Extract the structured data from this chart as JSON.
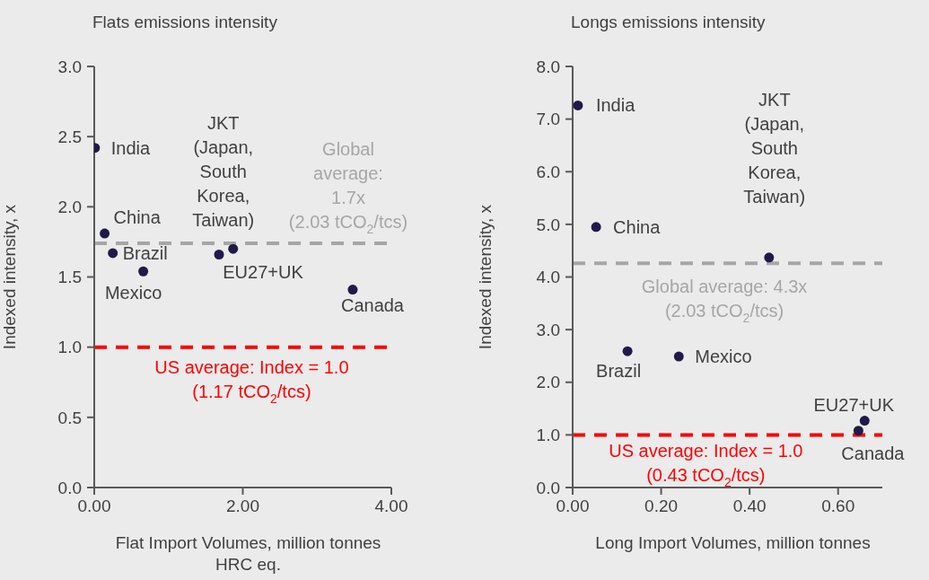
{
  "chart_data": [
    {
      "type": "scatter",
      "title": "Flats emissions intensity",
      "xlabel": "Flat Import Volumes, million tonnes HRC eq.",
      "ylabel": "Indexed intensity, x",
      "marker": "circle",
      "xlim": [
        0,
        4
      ],
      "xticks": [
        {
          "value": 0,
          "label": "0.00"
        },
        {
          "value": 2,
          "label": "2.00"
        },
        {
          "value": 4,
          "label": "4.00"
        }
      ],
      "ylim": [
        0,
        3
      ],
      "yticks": [
        {
          "value": 0,
          "label": "0.0"
        },
        {
          "value": 0.5,
          "label": "0.5"
        },
        {
          "value": 1,
          "label": "1.0"
        },
        {
          "value": 1.5,
          "label": "1.5"
        },
        {
          "value": 2,
          "label": "2.0"
        },
        {
          "value": 2.5,
          "label": "2.5"
        },
        {
          "value": 3,
          "label": "3.0"
        }
      ],
      "series": [
        {
          "name": "India",
          "color": "#1f1a4a",
          "x": [
            0.01
          ],
          "values": [
            2.42
          ]
        },
        {
          "name": "China",
          "color": "#1f1a4a",
          "x": [
            0.14
          ],
          "values": [
            1.81
          ]
        },
        {
          "name": "Brazil",
          "color": "#1f1a4a",
          "x": [
            0.25
          ],
          "values": [
            1.67
          ]
        },
        {
          "name": "Mexico",
          "color": "#1f1a4a",
          "x": [
            0.66
          ],
          "values": [
            1.54
          ]
        },
        {
          "name": "EU27+UK",
          "color": "#1f1a4a",
          "x": [
            1.68
          ],
          "values": [
            1.66
          ]
        },
        {
          "name": "JKT\n(Japan,\nSouth\nKorea,\nTaiwan)",
          "color": "#1f1a4a",
          "x": [
            1.87
          ],
          "values": [
            1.7
          ]
        },
        {
          "name": "Canada",
          "color": "#1f1a4a",
          "x": [
            3.48
          ],
          "values": [
            1.41
          ]
        }
      ],
      "ref_lines": [
        {
          "axis": "y",
          "value": 1.74,
          "label": "Global\naverage:\n1.7x\n(2.03 tCO$_{2}$/tcs)",
          "color": "#a6a6a6",
          "line_style": "dashed"
        },
        {
          "axis": "y",
          "value": 1.0,
          "label": "US average: Index = 1.0\n(1.17 tCO$_{2}$/tcs)",
          "color": "#ff0000",
          "line_style": "dashed"
        }
      ]
    },
    {
      "type": "scatter",
      "title": "Longs emissions intensity",
      "xlabel": "Long Import Volumes, million tonnes",
      "ylabel": "Indexed intensity, x",
      "marker": "circle",
      "xlim": [
        0,
        0.7
      ],
      "xticks": [
        {
          "value": 0,
          "label": "0.00"
        },
        {
          "value": 0.2,
          "label": "0.20"
        },
        {
          "value": 0.4,
          "label": "0.40"
        },
        {
          "value": 0.6,
          "label": "0.60"
        }
      ],
      "ylim": [
        0,
        8
      ],
      "yticks": [
        {
          "value": 0,
          "label": "0.0"
        },
        {
          "value": 1,
          "label": "1.0"
        },
        {
          "value": 2,
          "label": "2.0"
        },
        {
          "value": 3,
          "label": "3.0"
        },
        {
          "value": 4,
          "label": "4.0"
        },
        {
          "value": 5,
          "label": "5.0"
        },
        {
          "value": 6,
          "label": "6.0"
        },
        {
          "value": 7,
          "label": "7.0"
        },
        {
          "value": 8,
          "label": "8.0"
        }
      ],
      "series": [
        {
          "name": "India",
          "color": "#1f1a4a",
          "x": [
            0.012
          ],
          "values": [
            7.26
          ]
        },
        {
          "name": "China",
          "color": "#1f1a4a",
          "x": [
            0.053
          ],
          "values": [
            4.95
          ]
        },
        {
          "name": "JKT\n(Japan,\nSouth\nKorea,\nTaiwan)",
          "color": "#1f1a4a",
          "x": [
            0.444
          ],
          "values": [
            4.37
          ]
        },
        {
          "name": "Brazil",
          "color": "#1f1a4a",
          "x": [
            0.124
          ],
          "values": [
            2.59
          ]
        },
        {
          "name": "Mexico",
          "color": "#1f1a4a",
          "x": [
            0.24
          ],
          "values": [
            2.49
          ]
        },
        {
          "name": "EU27+UK",
          "color": "#1f1a4a",
          "x": [
            0.66
          ],
          "values": [
            1.27
          ]
        },
        {
          "name": "Canada",
          "color": "#1f1a4a",
          "x": [
            0.646
          ],
          "values": [
            1.08
          ]
        }
      ],
      "ref_lines": [
        {
          "axis": "y",
          "value": 4.26,
          "label": "Global average: 4.3x\n(2.03 tCO$_{2}$/tcs)",
          "color": "#a6a6a6",
          "line_style": "dashed"
        },
        {
          "axis": "y",
          "value": 1.0,
          "label": "US average: Index = 1.0\n(0.43 tCO$_{2}$/tcs)",
          "color": "#ff0000",
          "line_style": "dashed"
        }
      ]
    }
  ]
}
